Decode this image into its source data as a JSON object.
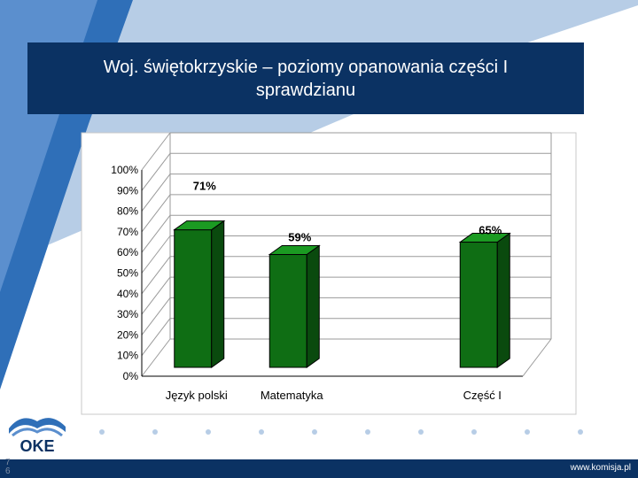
{
  "slide": {
    "title": "Woj. świętokrzyskie – poziomy opanowania części I sprawdzianu",
    "footer_url": "www.komisja.pl",
    "page_number": "7 6",
    "logo_text": "OKE"
  },
  "colors": {
    "title_bg": "#0b3263",
    "bar_front": "#0f6e14",
    "bar_side": "#0a4a0e",
    "bar_top": "#1b9a22",
    "footer_bg": "#0b3263",
    "accent_light": "#b7cde6"
  },
  "chart_data": {
    "type": "bar",
    "categories": [
      "Język polski",
      "Matematyka",
      "",
      "Część I"
    ],
    "values": [
      71,
      59,
      null,
      65
    ],
    "data_labels": [
      "71%",
      "59%",
      "",
      "65%"
    ],
    "y_ticks": [
      "100%",
      "90%",
      "80%",
      "70%",
      "60%",
      "50%",
      "40%",
      "30%",
      "20%",
      "10%",
      "0%"
    ],
    "ylim": [
      0,
      100
    ],
    "unit": "%",
    "grid": true,
    "legend": "none",
    "style": "3d"
  }
}
